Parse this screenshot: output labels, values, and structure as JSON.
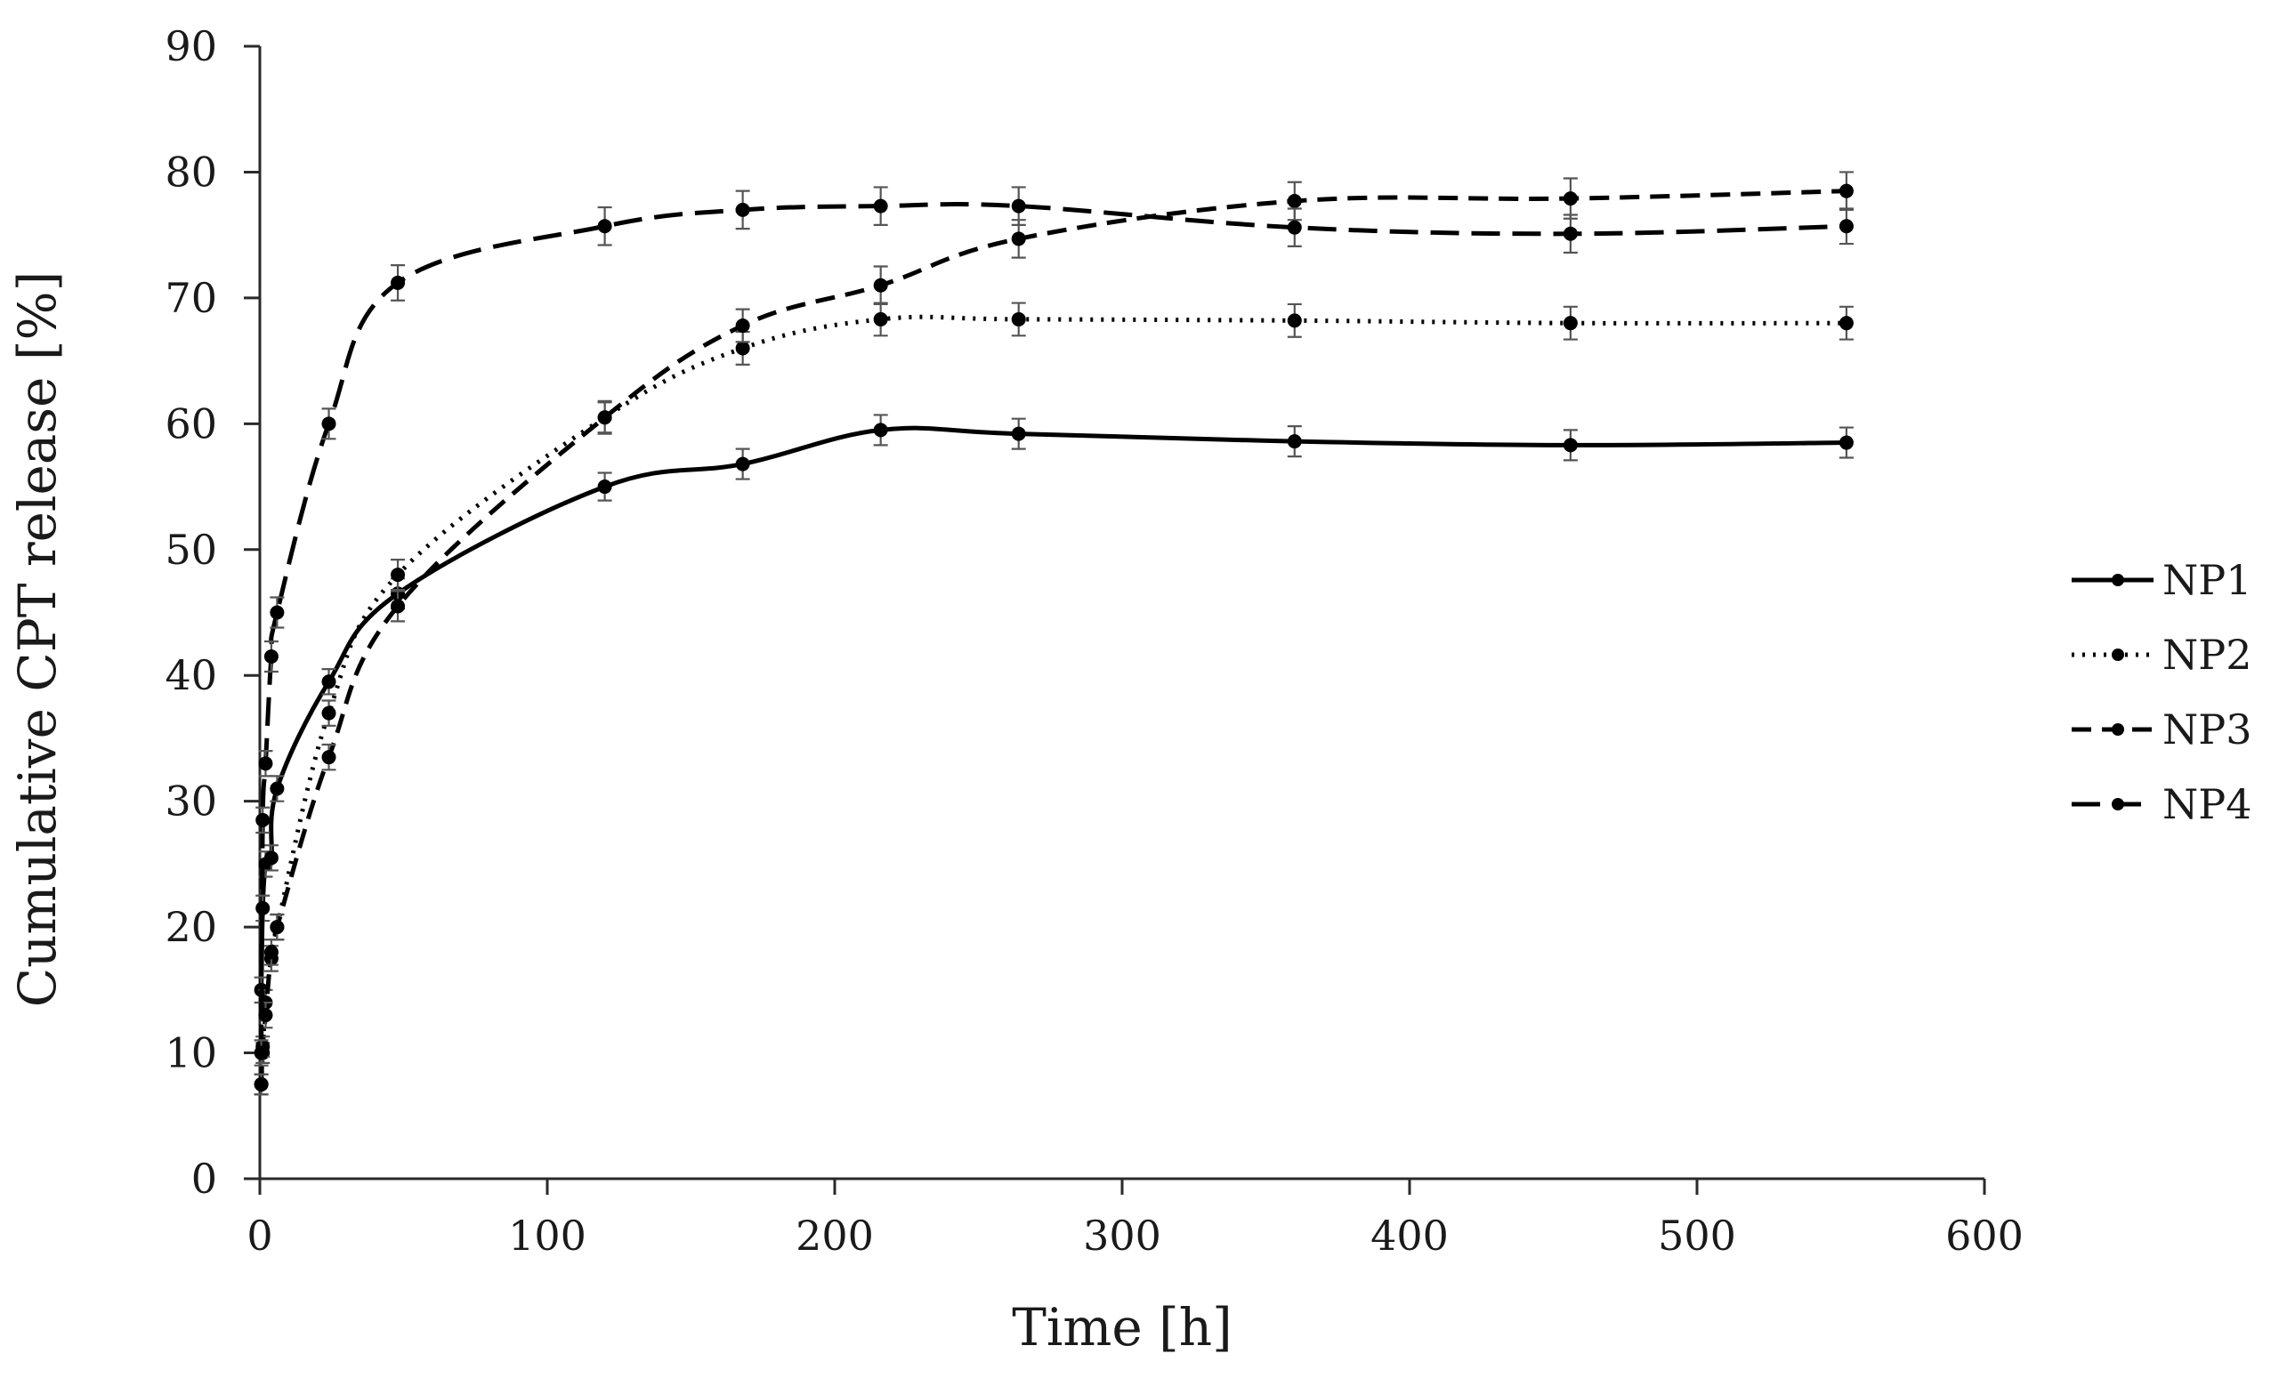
{
  "chart_data": {
    "type": "line",
    "title": "",
    "xlabel": "Time [h]",
    "ylabel": "Cumulative CPT release [%]",
    "xlim": [
      0,
      600
    ],
    "ylim": [
      0,
      90
    ],
    "xticks": [
      0,
      100,
      200,
      300,
      400,
      500,
      600
    ],
    "yticks": [
      0,
      10,
      20,
      30,
      40,
      50,
      60,
      70,
      80,
      90
    ],
    "grid": false,
    "legend_position": "right",
    "x": [
      0.5,
      1,
      2,
      4,
      6,
      24,
      48,
      120,
      168,
      216,
      264,
      360,
      456,
      552
    ],
    "series": [
      {
        "name": "NP1",
        "dash": "solid",
        "values": [
          15.0,
          21.5,
          25.0,
          25.5,
          31.0,
          39.5,
          46.5,
          55.0,
          56.8,
          59.5,
          59.2,
          58.6,
          58.3,
          58.5
        ],
        "errors": [
          1.0,
          1.0,
          1.0,
          1.0,
          1.0,
          1.0,
          1.2,
          1.1,
          1.2,
          1.2,
          1.2,
          1.2,
          1.2,
          1.2
        ]
      },
      {
        "name": "NP2",
        "dash": "dotted",
        "values": [
          7.5,
          10.0,
          14.0,
          17.5,
          20.0,
          37.0,
          48.0,
          60.5,
          66.0,
          68.3,
          68.3,
          68.2,
          68.0,
          68.0
        ],
        "errors": [
          0.8,
          0.8,
          1.0,
          1.0,
          1.0,
          1.0,
          1.2,
          1.2,
          1.3,
          1.3,
          1.3,
          1.3,
          1.3,
          1.3
        ]
      },
      {
        "name": "NP3",
        "dash": "dashed",
        "values": [
          7.5,
          10.5,
          13.0,
          18.0,
          20.0,
          33.5,
          45.5,
          60.5,
          67.8,
          71.0,
          74.7,
          77.7,
          77.9,
          78.5
        ],
        "errors": [
          0.8,
          0.8,
          1.0,
          1.0,
          1.0,
          1.0,
          1.2,
          1.3,
          1.3,
          1.5,
          1.5,
          1.5,
          1.6,
          1.5
        ]
      },
      {
        "name": "NP4",
        "dash": "longdash",
        "values": [
          10.0,
          28.5,
          33.0,
          41.5,
          45.0,
          60.0,
          71.2,
          75.7,
          77.0,
          77.3,
          77.3,
          75.6,
          75.1,
          75.7
        ],
        "errors": [
          1.0,
          1.0,
          1.0,
          1.2,
          1.2,
          1.2,
          1.4,
          1.5,
          1.5,
          1.5,
          1.5,
          1.5,
          1.5,
          1.4
        ]
      }
    ]
  }
}
